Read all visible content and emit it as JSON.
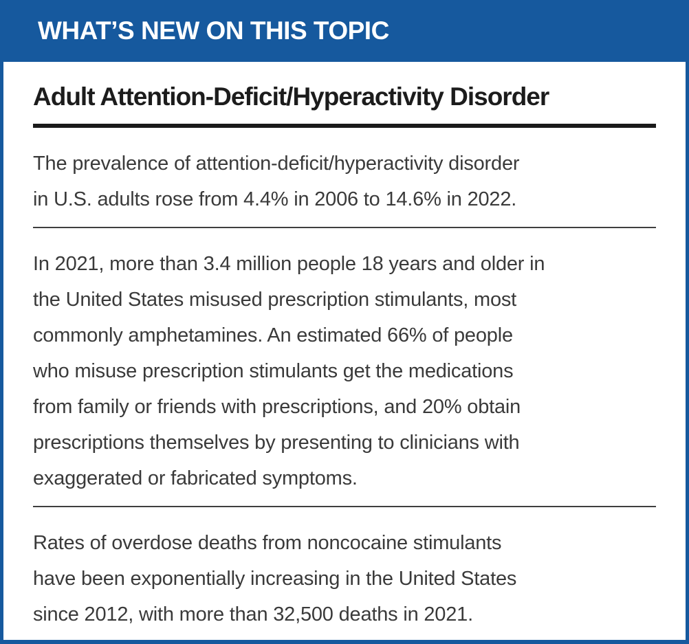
{
  "card": {
    "banner": "WHAT’S NEW ON THIS TOPIC",
    "title": "Adult Attention-Deficit/Hyperactivity Disorder",
    "facts": [
      [
        "The prevalence of attention-deficit/hyperactivity disorder",
        "in U.S. adults rose from 4.4% in 2006 to 14.6% in 2022."
      ],
      [
        "In 2021, more than 3.4 million people 18 years and older in",
        "the United States misused prescription stimulants, most",
        "commonly amphetamines. An estimated 66% of people",
        "who misuse prescription stimulants get the medications",
        "from family or friends with prescriptions, and 20% obtain",
        "prescriptions themselves by presenting to clinicians with",
        "exaggerated or fabricated symptoms."
      ],
      [
        "Rates of overdose deaths from noncocaine stimulants",
        "have been exponentially increasing in the United States",
        "since 2012, with more than 32,500 deaths in 2021."
      ]
    ]
  },
  "colors": {
    "brand_blue": "#16599E",
    "title_text": "#1C1C1C",
    "body_text": "#3A3A3A",
    "rule_thick": "#1A1A1A",
    "rule_thin": "#3E3E3E",
    "panel_background": "#FFFFFF",
    "banner_text": "#FFFFFF"
  }
}
